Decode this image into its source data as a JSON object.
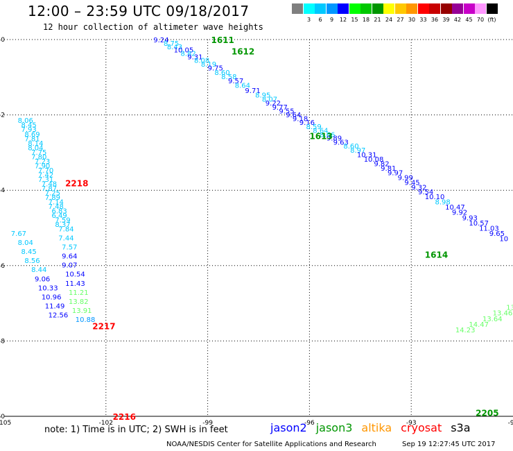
{
  "header": {
    "title": "12:00 – 23:59 UTC 09/18/2017",
    "subtitle": "12 hour collection of altimeter wave heights"
  },
  "color_scale": {
    "swatches": [
      {
        "color": "#7f7f7f",
        "label": ""
      },
      {
        "color": "#00ffff",
        "label": "3"
      },
      {
        "color": "#00c8ff",
        "label": "6"
      },
      {
        "color": "#0096ff",
        "label": "9"
      },
      {
        "color": "#0000ff",
        "label": "12"
      },
      {
        "color": "#00ff00",
        "label": "15"
      },
      {
        "color": "#00c800",
        "label": "18"
      },
      {
        "color": "#009600",
        "label": "21"
      },
      {
        "color": "#ffff00",
        "label": "24"
      },
      {
        "color": "#ffc800",
        "label": "27"
      },
      {
        "color": "#ff9600",
        "label": "30"
      },
      {
        "color": "#ff0000",
        "label": "33"
      },
      {
        "color": "#c80000",
        "label": "36"
      },
      {
        "color": "#960000",
        "label": "39"
      },
      {
        "color": "#960096",
        "label": "42"
      },
      {
        "color": "#c800c8",
        "label": "45"
      },
      {
        "color": "#ff96ff",
        "label": "70"
      },
      {
        "color": "#000000",
        "label": "(ft)"
      }
    ]
  },
  "footer": {
    "note": "note: 1) Time is in UTC; 2) SWH is in feet",
    "satellites": [
      {
        "name": "jason2",
        "color": "#0000ff"
      },
      {
        "name": "jason3",
        "color": "#009600"
      },
      {
        "name": "altika",
        "color": "#ff9600"
      },
      {
        "name": "cryosat",
        "color": "#ff0000"
      },
      {
        "name": "s3a",
        "color": "#000000"
      }
    ],
    "credit": "NOAA/NESDIS Center for Satellite Applications and Research",
    "timestamp": "Sep 19 12:27:45 UTC 2017"
  },
  "chart_data": {
    "type": "scatter",
    "title": "12:00 – 23:59 UTC 09/18/2017",
    "subtitle": "12 hour collection of altimeter wave heights",
    "xlabel": "",
    "ylabel": "",
    "xlim": [
      -105,
      -90
    ],
    "ylim": [
      -60,
      -50
    ],
    "grid": true,
    "x_ticks": [
      -105,
      -102,
      -99,
      -96,
      -93,
      -90
    ],
    "x_tick_labels": [
      "-105",
      "-102",
      "-99",
      "-96",
      "-93",
      "-90"
    ],
    "y_ticks": [
      -50,
      -52,
      -54,
      -56,
      -58,
      -60
    ],
    "y_tick_labels": [
      "-50",
      "-52",
      "-54",
      "-56",
      "-58",
      "-60"
    ],
    "value_unit": "ft",
    "colors": {
      "jason2": "#0000ff",
      "jason3": "#009600",
      "cryosat": "#ff0000",
      "light": "#00c8ff",
      "light2": "#0096ff",
      "pale": "#66ff66"
    },
    "series": [
      {
        "name": "jason3",
        "color_key": "jason3",
        "time_labels": [
          {
            "label": "1611",
            "x": -98.9,
            "y": -50.0
          },
          {
            "label": "1612",
            "x": -98.3,
            "y": -50.3
          },
          {
            "label": "1613",
            "x": -96.0,
            "y": -52.55
          },
          {
            "label": "1614",
            "x": -92.6,
            "y": -55.7
          }
        ],
        "points": [
          {
            "x": -100.6,
            "y": -50.0,
            "v": "9.24",
            "c": "jason2"
          },
          {
            "x": -100.3,
            "y": -50.09,
            "v": "8.75",
            "c": "light"
          },
          {
            "x": -100.2,
            "y": -50.18,
            "v": "8.43",
            "c": "light"
          },
          {
            "x": -100.0,
            "y": -50.27,
            "v": "10.05",
            "c": "jason2"
          },
          {
            "x": -99.8,
            "y": -50.36,
            "v": "8.82",
            "c": "light"
          },
          {
            "x": -99.6,
            "y": -50.45,
            "v": "9.31",
            "c": "jason2"
          },
          {
            "x": -99.4,
            "y": -50.54,
            "v": "8.08",
            "c": "light"
          },
          {
            "x": -99.2,
            "y": -50.64,
            "v": "8.19",
            "c": "light"
          },
          {
            "x": -99.0,
            "y": -50.75,
            "v": "9.75",
            "c": "jason2"
          },
          {
            "x": -98.8,
            "y": -50.87,
            "v": "8.60",
            "c": "light"
          },
          {
            "x": -98.6,
            "y": -50.98,
            "v": "8.58",
            "c": "light"
          },
          {
            "x": -98.4,
            "y": -51.09,
            "v": "9.57",
            "c": "jason2"
          },
          {
            "x": -98.2,
            "y": -51.21,
            "v": "8.64",
            "c": "light"
          },
          {
            "x": -97.9,
            "y": -51.34,
            "v": "9.71",
            "c": "jason2"
          },
          {
            "x": -97.6,
            "y": -51.46,
            "v": "8.95",
            "c": "light"
          },
          {
            "x": -97.4,
            "y": -51.57,
            "v": "8.07",
            "c": "light"
          },
          {
            "x": -97.3,
            "y": -51.68,
            "v": "9.22",
            "c": "jason2"
          },
          {
            "x": -97.1,
            "y": -51.79,
            "v": "9.77",
            "c": "jason2"
          },
          {
            "x": -96.9,
            "y": -51.89,
            "v": "9.55",
            "c": "jason2"
          },
          {
            "x": -96.7,
            "y": -51.99,
            "v": "9.64",
            "c": "jason2"
          },
          {
            "x": -96.5,
            "y": -52.09,
            "v": "9.18",
            "c": "jason2"
          },
          {
            "x": -96.3,
            "y": -52.19,
            "v": "9.16",
            "c": "jason2"
          },
          {
            "x": -96.1,
            "y": -52.3,
            "v": "8.59",
            "c": "light"
          },
          {
            "x": -95.9,
            "y": -52.4,
            "v": "8.64",
            "c": "light"
          },
          {
            "x": -95.7,
            "y": -52.51,
            "v": "8.66",
            "c": "light"
          },
          {
            "x": -95.5,
            "y": -52.61,
            "v": "9.89",
            "c": "jason2"
          },
          {
            "x": -95.3,
            "y": -52.72,
            "v": "9.63",
            "c": "jason2"
          },
          {
            "x": -95.0,
            "y": -52.82,
            "v": "8.60",
            "c": "light"
          },
          {
            "x": -94.8,
            "y": -52.93,
            "v": "8.97",
            "c": "light"
          },
          {
            "x": -94.6,
            "y": -53.05,
            "v": "10.31",
            "c": "jason2"
          },
          {
            "x": -94.4,
            "y": -53.17,
            "v": "10.08",
            "c": "jason2"
          },
          {
            "x": -94.1,
            "y": -53.29,
            "v": "9.82",
            "c": "jason2"
          },
          {
            "x": -93.9,
            "y": -53.41,
            "v": "9.81",
            "c": "jason2"
          },
          {
            "x": -93.7,
            "y": -53.53,
            "v": "9.97",
            "c": "jason2"
          },
          {
            "x": -93.4,
            "y": -53.66,
            "v": "9.99",
            "c": "jason2"
          },
          {
            "x": -93.2,
            "y": -53.78,
            "v": "9.45",
            "c": "jason2"
          },
          {
            "x": -93.0,
            "y": -53.91,
            "v": "9.32",
            "c": "jason2"
          },
          {
            "x": -92.8,
            "y": -54.03,
            "v": "9.54",
            "c": "jason2"
          },
          {
            "x": -92.6,
            "y": -54.16,
            "v": "10.10",
            "c": "jason2"
          },
          {
            "x": -92.3,
            "y": -54.3,
            "v": "8.98",
            "c": "light"
          },
          {
            "x": -92.0,
            "y": -54.44,
            "v": "10.47",
            "c": "jason2"
          },
          {
            "x": -91.8,
            "y": -54.58,
            "v": "9.92",
            "c": "jason2"
          },
          {
            "x": -91.5,
            "y": -54.72,
            "v": "9.93",
            "c": "jason2"
          },
          {
            "x": -91.3,
            "y": -54.86,
            "v": "10.57",
            "c": "jason2"
          },
          {
            "x": -91.0,
            "y": -55.0,
            "v": "11.03",
            "c": "jason2"
          },
          {
            "x": -90.7,
            "y": -55.14,
            "v": "9.65",
            "c": "jason2"
          },
          {
            "x": -90.4,
            "y": -55.28,
            "v": "10",
            "c": "jason2"
          }
        ]
      },
      {
        "name": "cryosat",
        "color_key": "cryosat",
        "time_labels": [
          {
            "label": "2218",
            "x": -103.2,
            "y": -53.8
          },
          {
            "label": "2217",
            "x": -102.4,
            "y": -57.6
          },
          {
            "label": "2216",
            "x": -101.8,
            "y": -60.0
          }
        ],
        "points": [
          {
            "x": -104.6,
            "y": -52.14,
            "v": "8.06",
            "c": "light"
          },
          {
            "x": -104.5,
            "y": -52.26,
            "v": "8.45",
            "c": "light"
          },
          {
            "x": -104.5,
            "y": -52.38,
            "v": "7.93",
            "c": "light"
          },
          {
            "x": -104.4,
            "y": -52.5,
            "v": "8.69",
            "c": "light"
          },
          {
            "x": -104.4,
            "y": -52.62,
            "v": "7.81",
            "c": "light"
          },
          {
            "x": -104.3,
            "y": -52.74,
            "v": "8.14",
            "c": "light"
          },
          {
            "x": -104.3,
            "y": -52.86,
            "v": "8.04",
            "c": "light"
          },
          {
            "x": -104.2,
            "y": -52.98,
            "v": "7.75",
            "c": "light"
          },
          {
            "x": -104.2,
            "y": -53.1,
            "v": "7.80",
            "c": "light"
          },
          {
            "x": -104.1,
            "y": -53.22,
            "v": "7.23",
            "c": "light"
          },
          {
            "x": -104.1,
            "y": -53.34,
            "v": "7.90",
            "c": "light"
          },
          {
            "x": -104.0,
            "y": -53.46,
            "v": "7.70",
            "c": "light"
          },
          {
            "x": -104.0,
            "y": -53.58,
            "v": "7.42",
            "c": "light"
          },
          {
            "x": -104.0,
            "y": -53.7,
            "v": "7.31",
            "c": "light"
          },
          {
            "x": -103.9,
            "y": -53.82,
            "v": "7.48",
            "c": "light"
          },
          {
            "x": -103.9,
            "y": -53.94,
            "v": "7.87",
            "c": "light"
          },
          {
            "x": -103.8,
            "y": -54.06,
            "v": "7.25",
            "c": "light"
          },
          {
            "x": -103.8,
            "y": -54.18,
            "v": "7.89",
            "c": "light"
          },
          {
            "x": -103.7,
            "y": -54.3,
            "v": "7.14",
            "c": "light"
          },
          {
            "x": -103.7,
            "y": -54.42,
            "v": "7.48",
            "c": "light"
          },
          {
            "x": -103.6,
            "y": -54.54,
            "v": "6.83",
            "c": "light"
          },
          {
            "x": -103.6,
            "y": -54.66,
            "v": "6.49",
            "c": "light"
          },
          {
            "x": -103.5,
            "y": -54.78,
            "v": "7.59",
            "c": "light"
          },
          {
            "x": -103.5,
            "y": -54.9,
            "v": "8.37",
            "c": "light"
          },
          {
            "x": -103.4,
            "y": -55.02,
            "v": "7.84",
            "c": "light"
          },
          {
            "x": -104.8,
            "y": -55.14,
            "v": "7.67",
            "c": "light"
          },
          {
            "x": -103.4,
            "y": -55.26,
            "v": "7.44",
            "c": "light"
          },
          {
            "x": -104.6,
            "y": -55.38,
            "v": "8.04",
            "c": "light"
          },
          {
            "x": -103.3,
            "y": -55.5,
            "v": "7.57",
            "c": "light"
          },
          {
            "x": -104.5,
            "y": -55.62,
            "v": "8.45",
            "c": "light"
          },
          {
            "x": -103.3,
            "y": -55.74,
            "v": "9.64",
            "c": "jason2"
          },
          {
            "x": -104.4,
            "y": -55.86,
            "v": "8.56",
            "c": "light"
          },
          {
            "x": -103.3,
            "y": -55.98,
            "v": "9.07",
            "c": "jason2"
          },
          {
            "x": -104.2,
            "y": -56.1,
            "v": "8.44",
            "c": "light"
          },
          {
            "x": -103.2,
            "y": -56.22,
            "v": "10.54",
            "c": "jason2"
          },
          {
            "x": -104.1,
            "y": -56.34,
            "v": "9.06",
            "c": "jason2"
          },
          {
            "x": -103.2,
            "y": -56.46,
            "v": "11.43",
            "c": "jason2"
          },
          {
            "x": -104.0,
            "y": -56.58,
            "v": "10.33",
            "c": "jason2"
          },
          {
            "x": -103.1,
            "y": -56.7,
            "v": "11.21",
            "c": "pale"
          },
          {
            "x": -103.9,
            "y": -56.82,
            "v": "10.96",
            "c": "jason2"
          },
          {
            "x": -103.1,
            "y": -56.94,
            "v": "13.82",
            "c": "pale"
          },
          {
            "x": -103.8,
            "y": -57.06,
            "v": "11.49",
            "c": "jason2"
          },
          {
            "x": -103.0,
            "y": -57.18,
            "v": "13.91",
            "c": "pale"
          },
          {
            "x": -103.7,
            "y": -57.3,
            "v": "12.56",
            "c": "jason2"
          },
          {
            "x": -102.9,
            "y": -57.42,
            "v": "10.88",
            "c": "light2"
          }
        ]
      },
      {
        "name": "jason3-south",
        "color_key": "jason3",
        "time_labels": [
          {
            "label": "2205",
            "x": -91.1,
            "y": -59.9
          }
        ],
        "points": [
          {
            "x": -90.2,
            "y": -57.1,
            "v": "13.1",
            "c": "pale"
          },
          {
            "x": -90.6,
            "y": -57.25,
            "v": "13.46",
            "c": "pale"
          },
          {
            "x": -90.9,
            "y": -57.4,
            "v": "13.64",
            "c": "pale"
          },
          {
            "x": -91.3,
            "y": -57.55,
            "v": "14.47",
            "c": "pale"
          },
          {
            "x": -91.7,
            "y": -57.7,
            "v": "14.23",
            "c": "pale"
          }
        ]
      }
    ]
  }
}
